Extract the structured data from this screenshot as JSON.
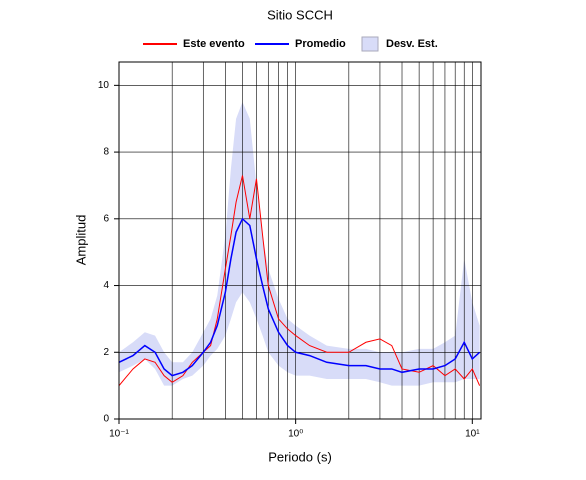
{
  "chart_data": {
    "type": "line",
    "title": "Sitio SCCH",
    "x_label": "Periodo (s)",
    "y_label": "Amplitud",
    "log_x": true,
    "grid": true,
    "legend": "top",
    "x": [
      0.1,
      0.12,
      0.14,
      0.16,
      0.18,
      0.2,
      0.23,
      0.26,
      0.3,
      0.33,
      0.36,
      0.4,
      0.43,
      0.46,
      0.5,
      0.55,
      0.6,
      0.65,
      0.7,
      0.8,
      0.9,
      1.0,
      1.2,
      1.5,
      2,
      2.5,
      3,
      3.5,
      4,
      5,
      6,
      7,
      8,
      9,
      10,
      11
    ],
    "series": [
      {
        "name": "Este evento",
        "color": "#ff0000",
        "values": [
          1.0,
          1.5,
          1.8,
          1.7,
          1.3,
          1.1,
          1.3,
          1.7,
          2.0,
          2.2,
          3.0,
          4.5,
          5.5,
          6.5,
          7.3,
          6.0,
          7.2,
          5.5,
          4.0,
          3.0,
          2.7,
          2.5,
          2.2,
          2.0,
          2.0,
          2.3,
          2.4,
          2.2,
          1.5,
          1.4,
          1.6,
          1.3,
          1.5,
          1.2,
          1.5,
          1.0
        ]
      },
      {
        "name": "Promedio",
        "color": "#0000ff",
        "values": [
          1.7,
          1.9,
          2.2,
          2.0,
          1.5,
          1.3,
          1.4,
          1.6,
          2.0,
          2.3,
          2.8,
          3.8,
          4.8,
          5.6,
          6.0,
          5.8,
          4.8,
          4.0,
          3.3,
          2.6,
          2.2,
          2.0,
          1.9,
          1.7,
          1.6,
          1.6,
          1.5,
          1.5,
          1.4,
          1.5,
          1.5,
          1.6,
          1.8,
          2.3,
          1.8,
          2.0
        ]
      },
      {
        "name": "Desv. Est.",
        "color": "#d8dcf8",
        "lower": [
          1.4,
          1.6,
          1.8,
          1.5,
          1.0,
          1.0,
          1.2,
          1.3,
          1.6,
          1.9,
          2.1,
          2.5,
          3.0,
          3.5,
          3.8,
          3.5,
          3.0,
          2.5,
          2.0,
          1.6,
          1.4,
          1.3,
          1.3,
          1.2,
          1.2,
          1.2,
          1.1,
          1.0,
          1.0,
          1.0,
          1.1,
          1.1,
          1.1,
          1.2,
          1.2,
          1.2
        ],
        "upper": [
          2.0,
          2.3,
          2.6,
          2.5,
          2.0,
          1.7,
          1.7,
          2.0,
          2.6,
          3.0,
          3.7,
          5.5,
          7.5,
          9.0,
          9.5,
          9.0,
          7.0,
          5.5,
          4.5,
          3.6,
          3.0,
          2.8,
          2.5,
          2.2,
          2.1,
          2.1,
          2.0,
          2.0,
          2.0,
          2.1,
          2.1,
          2.3,
          2.5,
          4.8,
          3.5,
          2.8
        ]
      }
    ],
    "xlim": [
      0.1,
      11.2
    ],
    "ylim": [
      0,
      10.7
    ],
    "xticks": [
      {
        "value": 0.1,
        "label": "10⁻¹"
      },
      {
        "value": 1,
        "label": "10⁰"
      },
      {
        "value": 10,
        "label": "10¹"
      }
    ],
    "xgrid": [
      0.2,
      0.3,
      0.4,
      0.5,
      0.6,
      0.7,
      0.8,
      0.9,
      1,
      2,
      3,
      4,
      5,
      6,
      7,
      8,
      9,
      10
    ],
    "yticks": [
      0,
      2,
      4,
      6,
      8,
      10
    ]
  }
}
